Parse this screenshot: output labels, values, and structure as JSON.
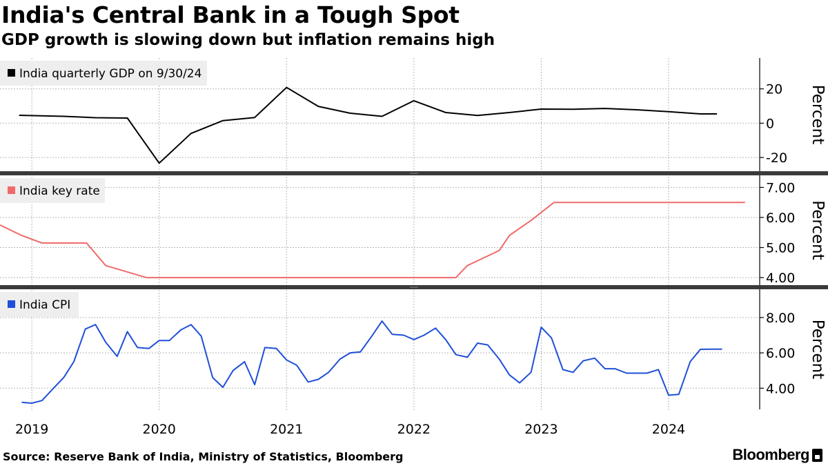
{
  "title": "India's Central Bank in a Tough Spot",
  "subtitle": "GDP growth is slowing down but inflation remains high",
  "source": "Source: Reserve Bank of India, Ministry of Statistics, Bloomberg",
  "brand": "Bloomberg",
  "colors": {
    "gdp": "#000000",
    "rate": "#f06a6a",
    "cpi": "#1f4fd8",
    "grid": "#b5b5b5",
    "legend_bg": "#eeeeee"
  },
  "chart_data": [
    {
      "type": "line",
      "panel": "top",
      "legend": "India quarterly GDP on 9/30/24",
      "ylabel": "Percent",
      "ylim": [
        -28,
        38
      ],
      "yticks": [
        -20,
        0,
        20
      ],
      "ytick_labels": [
        "-20",
        "0",
        "20"
      ],
      "x": [
        2018.9,
        2019.25,
        2019.5,
        2019.75,
        2020.0,
        2020.25,
        2020.5,
        2020.75,
        2021.0,
        2021.25,
        2021.5,
        2021.75,
        2022.0,
        2022.25,
        2022.5,
        2022.75,
        2023.0,
        2023.25,
        2023.5,
        2023.75,
        2024.0,
        2024.25,
        2024.38
      ],
      "values": [
        4.6,
        4.0,
        3.2,
        3.0,
        -23.3,
        -6.0,
        1.5,
        3.3,
        20.8,
        9.8,
        5.8,
        4.0,
        13.1,
        6.2,
        4.5,
        6.2,
        8.2,
        8.1,
        8.6,
        7.8,
        6.7,
        5.4,
        5.4
      ],
      "grid": true
    },
    {
      "type": "line",
      "panel": "middle",
      "legend": "India key rate",
      "ylabel": "Percent",
      "ylim": [
        3.75,
        7.4
      ],
      "yticks": [
        4.0,
        5.0,
        6.0,
        7.0
      ],
      "ytick_labels": [
        "4.00",
        "5.00",
        "6.00",
        "7.00"
      ],
      "x": [
        2018.75,
        2018.92,
        2019.08,
        2019.43,
        2019.58,
        2019.9,
        2021.75,
        2022.33,
        2022.42,
        2022.67,
        2022.75,
        2022.92,
        2023.1,
        2024.6
      ],
      "values": [
        5.75,
        5.4,
        5.15,
        5.15,
        4.4,
        4.0,
        4.0,
        4.0,
        4.4,
        4.9,
        5.4,
        5.9,
        6.5,
        6.5
      ],
      "grid": true
    },
    {
      "type": "line",
      "panel": "bottom",
      "legend": "India CPI",
      "ylabel": "Percent",
      "ylim": [
        2.8,
        9.6
      ],
      "yticks": [
        4.0,
        6.0,
        8.0
      ],
      "ytick_labels": [
        "4.00",
        "6.00",
        "8.00"
      ],
      "x": [
        2018.92,
        2019.0,
        2019.08,
        2019.17,
        2019.25,
        2019.33,
        2019.42,
        2019.5,
        2019.58,
        2019.67,
        2019.75,
        2019.83,
        2019.92,
        2020.0,
        2020.08,
        2020.17,
        2020.25,
        2020.33,
        2020.42,
        2020.5,
        2020.58,
        2020.67,
        2020.75,
        2020.83,
        2020.92,
        2021.0,
        2021.08,
        2021.17,
        2021.25,
        2021.33,
        2021.42,
        2021.5,
        2021.58,
        2021.67,
        2021.75,
        2021.83,
        2021.92,
        2022.0,
        2022.08,
        2022.17,
        2022.25,
        2022.33,
        2022.42,
        2022.5,
        2022.58,
        2022.67,
        2022.75,
        2022.83,
        2022.92,
        2023.0,
        2023.08,
        2023.17,
        2023.25,
        2023.33,
        2023.42,
        2023.5,
        2023.58,
        2023.67,
        2023.75,
        2023.83,
        2023.92,
        2024.0,
        2024.08,
        2024.17,
        2024.25,
        2024.33,
        2024.42
      ],
      "values": [
        3.2,
        3.15,
        3.3,
        4.0,
        4.6,
        5.5,
        7.35,
        7.6,
        6.6,
        5.8,
        7.2,
        6.3,
        6.25,
        6.7,
        6.7,
        7.3,
        7.6,
        6.95,
        4.6,
        4.05,
        5.0,
        5.5,
        4.2,
        6.3,
        6.25,
        5.6,
        5.3,
        4.35,
        4.5,
        4.9,
        5.65,
        6.0,
        6.05,
        6.95,
        7.8,
        7.05,
        7.0,
        6.75,
        7.0,
        7.4,
        6.75,
        5.9,
        5.75,
        6.55,
        6.45,
        5.65,
        4.75,
        4.3,
        4.9,
        7.45,
        6.85,
        5.05,
        4.9,
        5.55,
        5.7,
        5.1,
        5.1,
        4.85,
        4.85,
        4.85,
        5.05,
        3.6,
        3.65,
        5.5,
        6.2,
        6.21,
        6.21
      ],
      "grid": true
    }
  ],
  "x_axis": {
    "xlim": [
      2018.75,
      2024.71
    ],
    "tick_labels": [
      "2019",
      "2020",
      "2021",
      "2022",
      "2023",
      "2024"
    ],
    "tick_positions": [
      2019,
      2020,
      2021,
      2022,
      2023,
      2024
    ]
  }
}
